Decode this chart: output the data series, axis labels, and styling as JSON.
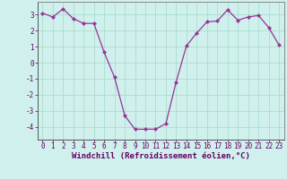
{
  "x": [
    0,
    1,
    2,
    3,
    4,
    5,
    6,
    7,
    8,
    9,
    10,
    11,
    12,
    13,
    14,
    15,
    16,
    17,
    18,
    19,
    20,
    21,
    22,
    23
  ],
  "y": [
    3.1,
    2.85,
    3.35,
    2.75,
    2.45,
    2.45,
    0.65,
    -0.9,
    -3.3,
    -4.15,
    -4.15,
    -4.15,
    -3.8,
    -1.2,
    1.05,
    1.85,
    2.55,
    2.6,
    3.3,
    2.65,
    2.85,
    2.95,
    2.2,
    1.1
  ],
  "line_color": "#993399",
  "marker": "D",
  "markersize": 2.2,
  "linewidth": 0.9,
  "background_color": "#cff0ec",
  "grid_color": "#aaddcc",
  "xlabel": "Windchill (Refroidissement éolien,°C)",
  "ylabel": "",
  "ylim": [
    -4.8,
    3.8
  ],
  "xlim": [
    -0.5,
    23.5
  ],
  "yticks": [
    -4,
    -3,
    -2,
    -1,
    0,
    1,
    2,
    3
  ],
  "xticks": [
    0,
    1,
    2,
    3,
    4,
    5,
    6,
    7,
    8,
    9,
    10,
    11,
    12,
    13,
    14,
    15,
    16,
    17,
    18,
    19,
    20,
    21,
    22,
    23
  ],
  "tick_fontsize": 5.5,
  "xlabel_fontsize": 6.5
}
